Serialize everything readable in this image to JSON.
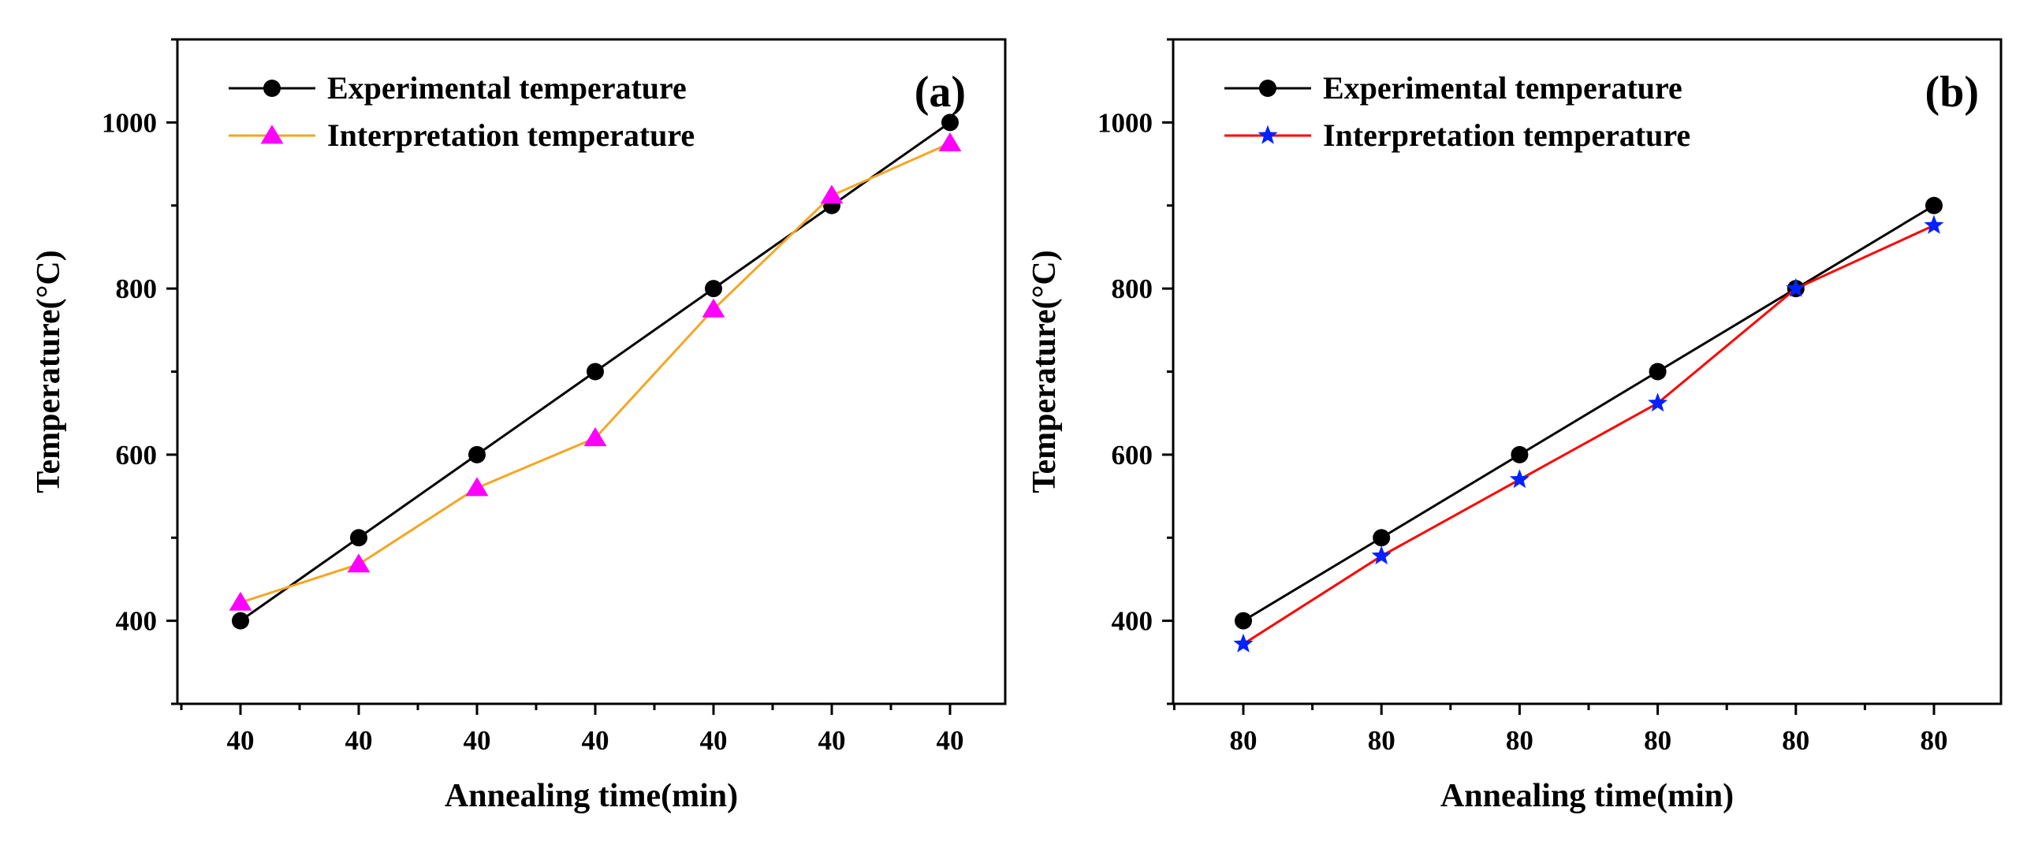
{
  "chart_data": [
    {
      "type": "line",
      "panel_label": "(a)",
      "xlabel": "Annealing time(min)",
      "ylabel": "Temperature(°C)",
      "categories": [
        "40",
        "40",
        "40",
        "40",
        "40",
        "40",
        "40"
      ],
      "ylim": [
        300,
        1100
      ],
      "yticks": [
        400,
        600,
        800,
        1000
      ],
      "legend_position": "top-left",
      "series": [
        {
          "name": "Experimental temperature",
          "values": [
            400,
            500,
            600,
            700,
            800,
            900,
            1000
          ],
          "line_color": "#000000",
          "marker": "circle",
          "marker_color": "#000000"
        },
        {
          "name": "Interpretation temperature",
          "values": [
            422,
            468,
            560,
            620,
            775,
            912,
            975
          ],
          "line_color": "#F5A623",
          "marker": "triangle",
          "marker_color": "#FF00FF"
        }
      ]
    },
    {
      "type": "line",
      "panel_label": "(b)",
      "xlabel": "Annealing time(min)",
      "ylabel": "Temperature(°C)",
      "categories": [
        "80",
        "80",
        "80",
        "80",
        "80",
        "80"
      ],
      "ylim": [
        300,
        1100
      ],
      "yticks": [
        400,
        600,
        800,
        1000
      ],
      "legend_position": "top-left",
      "series": [
        {
          "name": "Experimental temperature",
          "values": [
            400,
            500,
            600,
            700,
            800,
            900
          ],
          "line_color": "#000000",
          "marker": "circle",
          "marker_color": "#000000"
        },
        {
          "name": "Interpretation temperature",
          "values": [
            372,
            478,
            570,
            662,
            800,
            876
          ],
          "line_color": "#FF0000",
          "marker": "star",
          "marker_color": "#0022FF"
        }
      ]
    }
  ]
}
